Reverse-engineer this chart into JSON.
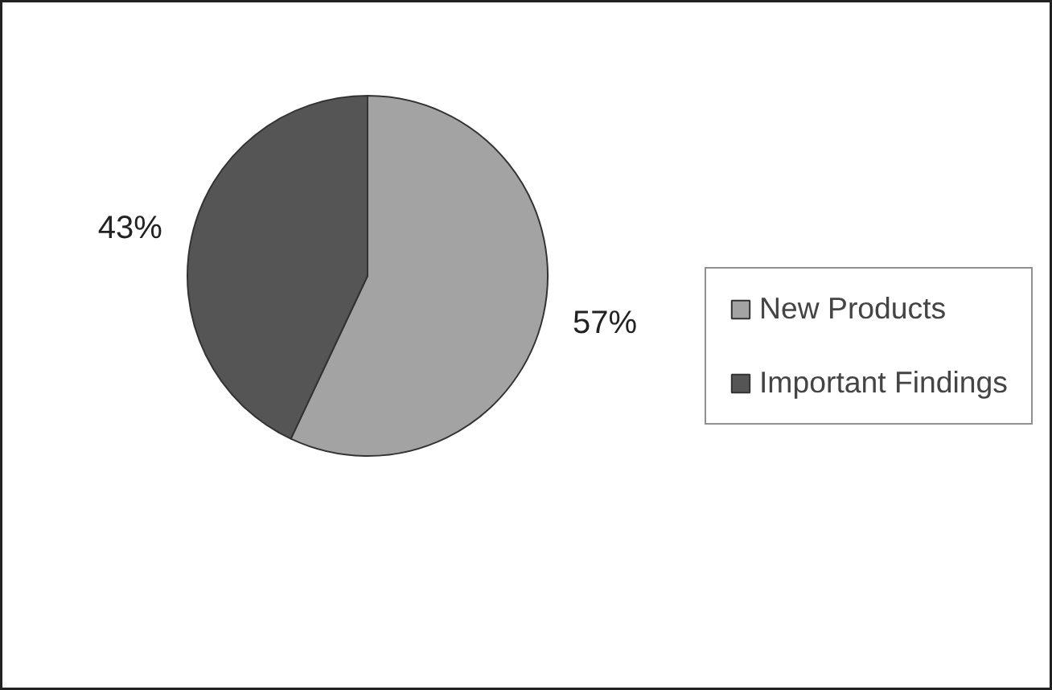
{
  "chart_data": {
    "type": "pie",
    "categories": [
      "New Products",
      "Important Findings"
    ],
    "values": [
      57,
      43
    ],
    "colors": [
      "#a3a3a3",
      "#555555"
    ],
    "value_labels": [
      "57%",
      "43%"
    ],
    "legend": "right"
  }
}
